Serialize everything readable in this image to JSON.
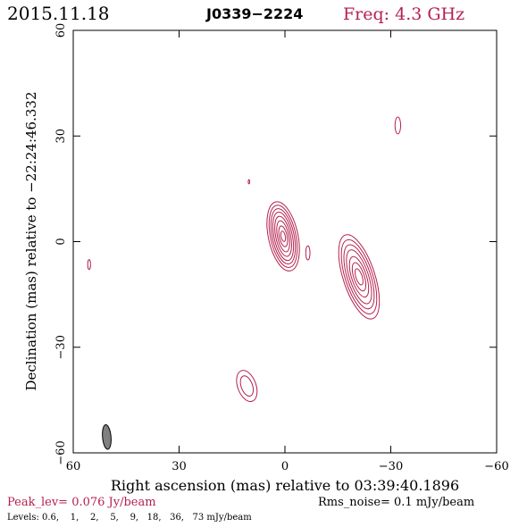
{
  "header": {
    "date": "2015.11.18",
    "source": "J0339−2224",
    "freq": "Freq: 4.3 GHz"
  },
  "footer": {
    "peak": "Peak_lev=  0.076 Jy/beam",
    "rms": "Rms_noise=   0.1 mJy/beam",
    "levels": "Levels: 0.6,    1,    2,    5,    9,   18,   36,   73 mJy/beam"
  },
  "colors": {
    "contour": "#b5214f",
    "freq_text": "#b5214f",
    "peak_text": "#b5214f",
    "beam_fill": "#808080",
    "axes": "#000000"
  },
  "chart_data": {
    "type": "contour",
    "title": "J0339−2224",
    "xlabel": "Right ascension (mas) relative to 03:39:40.1896",
    "ylabel": "Declination (mas) relative to −22:24:46.332",
    "xlim": [
      60,
      -60
    ],
    "ylim": [
      -60,
      60
    ],
    "xticks": [
      60,
      30,
      0,
      -30,
      -60
    ],
    "yticks": [
      -60,
      -30,
      0,
      30,
      60
    ],
    "xtick_labels": [
      "60",
      "30",
      "0",
      "−30",
      "−60"
    ],
    "ytick_labels": [
      "−60",
      "−30",
      "0",
      "30",
      "60"
    ],
    "levels_mJy": [
      0.6,
      1,
      2,
      5,
      9,
      18,
      36,
      73
    ],
    "components": [
      {
        "x": 0.5,
        "y": 1.5,
        "rx": [
          4.2,
          3.6,
          3.1,
          2.6,
          2.1,
          1.6,
          1.1,
          0.6
        ],
        "ry": [
          10.0,
          9.0,
          8.0,
          7.0,
          5.8,
          4.5,
          3.0,
          1.5
        ],
        "angle": -12
      },
      {
        "x": -21.0,
        "y": -10.0,
        "rx": [
          4.5,
          3.9,
          3.3,
          2.7,
          2.1,
          1.5,
          0.9
        ],
        "ry": [
          12.5,
          11.0,
          9.5,
          8.0,
          6.0,
          4.2,
          2.4
        ],
        "angle": -18
      },
      {
        "x": -6.5,
        "y": -3.2,
        "rx": [
          0.6
        ],
        "ry": [
          2.0
        ],
        "angle": 0
      },
      {
        "x": -32.0,
        "y": 33.0,
        "rx": [
          0.8
        ],
        "ry": [
          2.4
        ],
        "angle": 0
      },
      {
        "x": 55.5,
        "y": -6.5,
        "rx": [
          0.4
        ],
        "ry": [
          1.4
        ],
        "angle": 0
      },
      {
        "x": 10.2,
        "y": 17.0,
        "rx": [
          0.2
        ],
        "ry": [
          0.6
        ],
        "angle": 0
      },
      {
        "x": 10.8,
        "y": -41.0,
        "rx": [
          2.6,
          1.6
        ],
        "ry": [
          4.6,
          3.0
        ],
        "angle": -20
      }
    ],
    "beam": {
      "x": 50.5,
      "y": -55.5,
      "major": 7.0,
      "minor": 2.4,
      "angle": -5
    }
  }
}
